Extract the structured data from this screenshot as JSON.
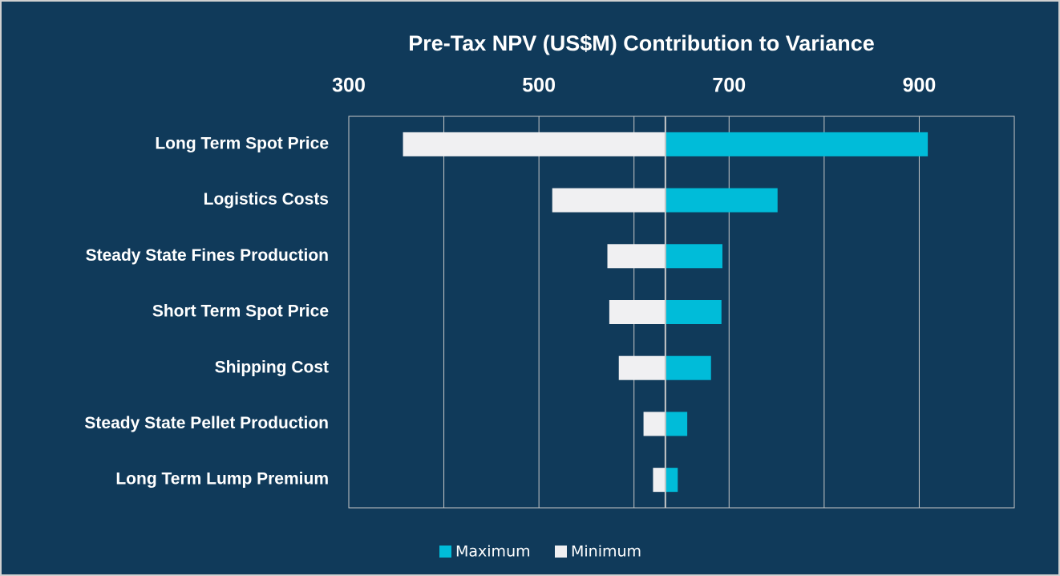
{
  "chart_data": {
    "type": "tornado",
    "title": "Pre-Tax NPV (US$M) Contribution to Variance",
    "categories": [
      "Long Term Spot Price",
      "Logistics Costs",
      "Steady State Fines Production",
      "Short Term Spot Price",
      "Shipping Cost",
      "Steady State Pellet Production",
      "Long Term Lump Premium"
    ],
    "base": 633,
    "series": [
      {
        "name": "Maximum",
        "color": "#00bcd9",
        "values": [
          909,
          751,
          693,
          692,
          681,
          656,
          646
        ]
      },
      {
        "name": "Minimum",
        "color": "#f0f0f2",
        "values": [
          357,
          514,
          572,
          574,
          584,
          610,
          620
        ]
      }
    ],
    "xlim": [
      300,
      1000
    ],
    "xticks": [
      300,
      500,
      700,
      900
    ],
    "xgrid": [
      400,
      500,
      600,
      700,
      800,
      900
    ],
    "grid": true,
    "legend": "bottom"
  }
}
